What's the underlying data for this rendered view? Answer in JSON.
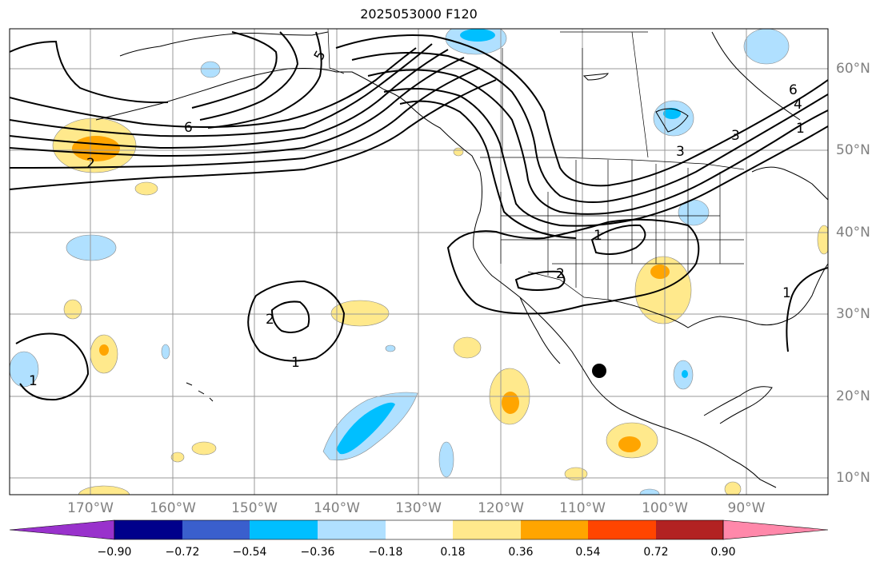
{
  "title": "2025053000 F120",
  "lat_labels": [
    "60°N",
    "50°N",
    "40°N",
    "30°N",
    "20°N",
    "10°N"
  ],
  "lon_labels": [
    "170°W",
    "160°W",
    "150°W",
    "140°W",
    "130°W",
    "120°W",
    "110°W",
    "100°W",
    "90°W"
  ],
  "contour_labels": [
    "6",
    "5",
    "2",
    "6",
    "4",
    "3",
    "1",
    "3",
    "1",
    "2",
    "2",
    "1",
    "1",
    "1"
  ],
  "colorbar": {
    "colors": [
      "#9932cc",
      "#00008b",
      "#3a5fcd",
      "#00bfff",
      "#b0e0ff",
      "#ffffff",
      "#ffe98c",
      "#ffa500",
      "#ff4500",
      "#b22222",
      "#ff88aa"
    ],
    "tick_labels": [
      "−0.90",
      "−0.72",
      "−0.54",
      "−0.36",
      "−0.18",
      "0.18",
      "0.36",
      "0.54",
      "0.72",
      "0.90"
    ]
  },
  "colors": {
    "land_outline": "#000000",
    "grid": "#999999",
    "contour": "#000000",
    "pos_light": "#ffe98c",
    "pos_mid": "#ffa500",
    "neg_light": "#b0e0ff",
    "neg_mid": "#00bfff"
  }
}
